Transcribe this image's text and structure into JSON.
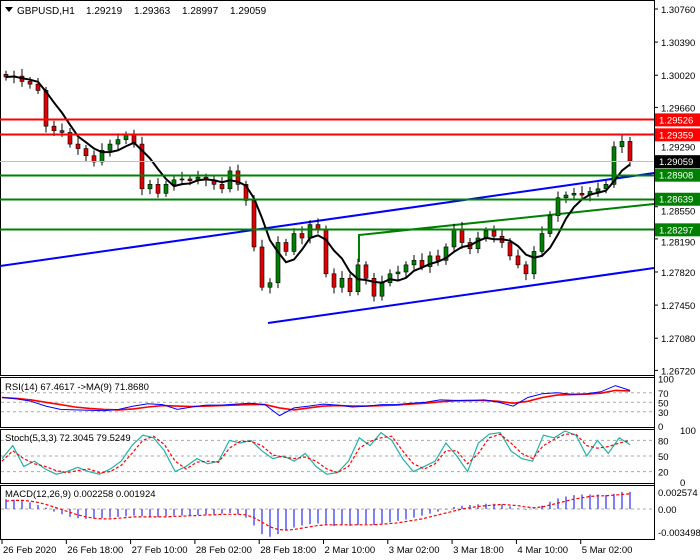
{
  "header": {
    "arrow_icon": "triangle-down-icon",
    "symbol": "GBPUSD,H1",
    "open": "1.29219",
    "high": "1.29363",
    "low": "1.28997",
    "close": "1.29059"
  },
  "price_scale": {
    "ticks": [
      "1.30760",
      "1.30390",
      "1.30020",
      "1.29660",
      "1.29290",
      "1.28550",
      "1.28190",
      "1.27820",
      "1.27450",
      "1.27080",
      "1.26720"
    ],
    "tick_values": [
      1.3076,
      1.3039,
      1.3002,
      1.2966,
      1.2929,
      1.2855,
      1.2819,
      1.2782,
      1.2745,
      1.2708,
      1.2672
    ]
  },
  "levels": [
    {
      "label": "1.29526",
      "value": 1.29526,
      "color": "#ff0000"
    },
    {
      "label": "1.29359",
      "value": 1.29359,
      "color": "#ff0000"
    },
    {
      "label": "1.29059",
      "value": 1.29059,
      "color": "#000000",
      "line": "#c0c0c0"
    },
    {
      "label": "1.28908",
      "value": 1.28908,
      "color": "#008000"
    },
    {
      "label": "1.28639",
      "value": 1.28639,
      "color": "#008000"
    },
    {
      "label": "1.28297",
      "value": 1.28297,
      "color": "#008000"
    }
  ],
  "colors": {
    "bull": "#008000",
    "bear": "#e00000",
    "channel": "#0000ff",
    "green_channel": "#008000",
    "ma": "#000000",
    "rsi": "#0000ff",
    "rsi_ma": "#ff0000",
    "stoch_main": "#20b2aa",
    "stoch_signal": "#ff0000",
    "macd_hist": "#0000ff",
    "macd_signal": "#ff0000"
  },
  "chart_data": {
    "type": "candlestick",
    "closes": [
      1.3,
      1.3001,
      1.2995,
      1.2992,
      1.2985,
      1.2945,
      1.294,
      1.2938,
      1.2925,
      1.292,
      1.2912,
      1.2905,
      1.2918,
      1.2925,
      1.293,
      1.2935,
      1.2925,
      1.2875,
      1.288,
      1.287,
      1.288,
      1.2885,
      1.2886,
      1.2884,
      1.2888,
      1.2885,
      1.288,
      1.2875,
      1.2895,
      1.288,
      1.2862,
      1.281,
      1.2765,
      1.277,
      1.2815,
      1.2805,
      1.2825,
      1.282,
      1.2835,
      1.283,
      1.278,
      1.2765,
      1.2775,
      1.276,
      1.279,
      1.2775,
      1.2755,
      1.277,
      1.278,
      1.2782,
      1.279,
      1.2795,
      1.2788,
      1.28,
      1.2795,
      1.281,
      1.283,
      1.2815,
      1.2808,
      1.282,
      1.2828,
      1.2822,
      1.2815,
      1.28,
      1.279,
      1.278,
      1.2805,
      1.2825,
      1.2845,
      1.2865,
      1.2868,
      1.287,
      1.2868,
      1.2872,
      1.2875,
      1.288,
      1.2922,
      1.2928,
      1.2906
    ],
    "x_ticks": [
      "26 Feb 2020",
      "26 Feb 18:00",
      "27 Feb 10:00",
      "28 Feb 02:00",
      "28 Feb 18:00",
      "2 Mar 10:00",
      "3 Mar 02:00",
      "3 Mar 18:00",
      "4 Mar 10:00",
      "5 Mar 02:00"
    ]
  },
  "rsi": {
    "label": "RSI(14) 67.4617  ->MA(9) 71.8680",
    "levels": [
      "100",
      "70",
      "50",
      "30",
      "0"
    ],
    "values": [
      60,
      57,
      52,
      42,
      35,
      34,
      33,
      32,
      35,
      42,
      47,
      45,
      35,
      40,
      44,
      44,
      46,
      48,
      45,
      22,
      38,
      42,
      46,
      44,
      40,
      42,
      45,
      45,
      48,
      50,
      55,
      54,
      53,
      55,
      50,
      42,
      60,
      68,
      70,
      67,
      68,
      72,
      85,
      75
    ],
    "ma": [
      60,
      58,
      55,
      50,
      45,
      40,
      37,
      35,
      34,
      36,
      40,
      43,
      42,
      41,
      42,
      43,
      44,
      45,
      45,
      38,
      34,
      38,
      42,
      43,
      42,
      42,
      43,
      44,
      46,
      48,
      51,
      53,
      54,
      54,
      52,
      48,
      52,
      60,
      65,
      66,
      67,
      69,
      75,
      74
    ]
  },
  "stoch": {
    "label": "Stoch(5,3,3) 72.3045 79.5249",
    "levels": [
      "100",
      "80",
      "50",
      "20",
      "0"
    ],
    "main": [
      45,
      70,
      30,
      40,
      25,
      15,
      20,
      28,
      20,
      15,
      25,
      40,
      70,
      90,
      85,
      60,
      20,
      30,
      45,
      35,
      40,
      80,
      75,
      80,
      60,
      45,
      50,
      40,
      55,
      30,
      15,
      18,
      40,
      85,
      70,
      95,
      80,
      45,
      20,
      30,
      40,
      75,
      50,
      20,
      75,
      92,
      95,
      60,
      45,
      40,
      90,
      85,
      98,
      90,
      50,
      80,
      55,
      85,
      72
    ],
    "signal": [
      40,
      60,
      45,
      35,
      30,
      22,
      18,
      22,
      25,
      18,
      20,
      32,
      55,
      80,
      88,
      72,
      40,
      25,
      38,
      40,
      38,
      65,
      78,
      78,
      70,
      52,
      48,
      45,
      48,
      40,
      25,
      18,
      30,
      65,
      78,
      85,
      88,
      60,
      35,
      25,
      35,
      60,
      60,
      35,
      55,
      85,
      92,
      75,
      55,
      45,
      70,
      82,
      92,
      92,
      70,
      65,
      68,
      75,
      80
    ]
  },
  "macd": {
    "label": "MACD(12,26,9) 0.002258 0.001924",
    "ticks": [
      "0.002574",
      "0.00",
      "-0.003498"
    ],
    "hist": [
      0.0015,
      0.0014,
      0.0012,
      0.001,
      0.0006,
      0.0002,
      -0.0004,
      -0.0008,
      -0.0012,
      -0.0014,
      -0.0015,
      -0.0015,
      -0.0014,
      -0.0013,
      -0.0012,
      -0.0011,
      -0.001,
      -0.0011,
      -0.0012,
      -0.0012,
      -0.0011,
      -0.001,
      -0.001,
      -0.0009,
      -0.0009,
      -0.0008,
      -0.0008,
      -0.0007,
      -0.0006,
      -0.0008,
      -0.0013,
      -0.0025,
      -0.0038,
      -0.0042,
      -0.0038,
      -0.0032,
      -0.0028,
      -0.0025,
      -0.0023,
      -0.0022,
      -0.0024,
      -0.0026,
      -0.0025,
      -0.0026,
      -0.0024,
      -0.0023,
      -0.0024,
      -0.0022,
      -0.002,
      -0.0018,
      -0.0016,
      -0.0013,
      -0.001,
      -0.0007,
      -0.0004,
      -0.0001,
      0.0003,
      0.0005,
      0.0006,
      0.0007,
      0.0008,
      0.0008,
      0.0007,
      0.0004,
      0.0001,
      -0.0001,
      0.0001,
      0.0005,
      0.0011,
      0.0016,
      0.0019,
      0.0021,
      0.0022,
      0.0022,
      0.0022,
      0.0021,
      0.0023,
      0.0026,
      0.0026
    ],
    "signal": [
      0.0012,
      0.0013,
      0.0013,
      0.0012,
      0.001,
      0.0007,
      0.0003,
      -0.0001,
      -0.0005,
      -0.0009,
      -0.0012,
      -0.0014,
      -0.0015,
      -0.0015,
      -0.0014,
      -0.0013,
      -0.0012,
      -0.0012,
      -0.0012,
      -0.0012,
      -0.0012,
      -0.0011,
      -0.0011,
      -0.001,
      -0.001,
      -0.0009,
      -0.0009,
      -0.0008,
      -0.0008,
      -0.0008,
      -0.0009,
      -0.0013,
      -0.002,
      -0.0027,
      -0.0031,
      -0.0032,
      -0.0031,
      -0.0029,
      -0.0027,
      -0.0025,
      -0.0024,
      -0.0024,
      -0.0024,
      -0.0024,
      -0.0024,
      -0.0024,
      -0.0024,
      -0.0023,
      -0.0022,
      -0.0021,
      -0.0019,
      -0.0017,
      -0.0015,
      -0.0012,
      -0.0009,
      -0.0006,
      -0.0003,
      0.0,
      0.0002,
      0.0004,
      0.0005,
      0.0006,
      0.0007,
      0.0006,
      0.0005,
      0.0003,
      0.0002,
      0.0003,
      0.0006,
      0.0009,
      0.0012,
      0.0015,
      0.0017,
      0.0019,
      0.002,
      0.002,
      0.0021,
      0.0022,
      0.0023
    ]
  }
}
